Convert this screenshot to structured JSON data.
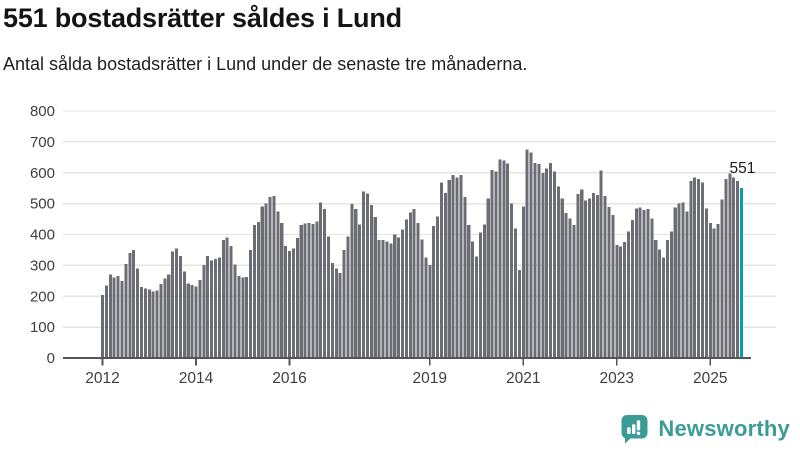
{
  "header": {
    "title": "551 bostadsrätter såldes i Lund",
    "subtitle": "Antal sålda bostadsrätter i Lund under de senaste tre månaderna."
  },
  "chart_data": {
    "type": "bar",
    "title": "551 bostadsrätter såldes i Lund",
    "subtitle": "Antal sålda bostadsrätter i Lund under de senaste tre månaderna.",
    "x_start": "2012-01",
    "x_end": "2025-09",
    "frequency": "monthly",
    "ylim": [
      0,
      800
    ],
    "y_ticks": [
      0,
      100,
      200,
      300,
      400,
      500,
      600,
      700,
      800
    ],
    "x_ticks": [
      {
        "year": 2012,
        "label": "2012"
      },
      {
        "year": 2014,
        "label": "2014"
      },
      {
        "year": 2016,
        "label": "2016"
      },
      {
        "year": 2019,
        "label": "2019"
      },
      {
        "year": 2021,
        "label": "2021"
      },
      {
        "year": 2023,
        "label": "2023"
      },
      {
        "year": 2025,
        "label": "2025"
      }
    ],
    "grid": true,
    "legend": "none",
    "values": [
      204,
      235,
      270,
      260,
      265,
      250,
      305,
      340,
      350,
      290,
      230,
      225,
      222,
      216,
      218,
      240,
      258,
      270,
      345,
      355,
      330,
      280,
      242,
      236,
      231,
      253,
      301,
      330,
      315,
      320,
      326,
      382,
      390,
      363,
      303,
      266,
      261,
      263,
      350,
      430,
      441,
      490,
      501,
      522,
      525,
      474,
      438,
      363,
      347,
      355,
      388,
      431,
      436,
      438,
      434,
      442,
      503,
      482,
      393,
      307,
      290,
      276,
      350,
      393,
      498,
      482,
      433,
      539,
      533,
      496,
      456,
      382,
      382,
      377,
      371,
      400,
      390,
      417,
      449,
      471,
      482,
      438,
      384,
      326,
      301,
      428,
      458,
      568,
      535,
      577,
      593,
      585,
      593,
      522,
      431,
      377,
      328,
      406,
      433,
      517,
      609,
      604,
      643,
      639,
      630,
      501,
      420,
      285,
      490,
      676,
      665,
      631,
      628,
      600,
      614,
      631,
      604,
      555,
      517,
      469,
      452,
      430,
      531,
      546,
      510,
      517,
      535,
      528,
      607,
      525,
      489,
      463,
      366,
      361,
      375,
      409,
      447,
      485,
      488,
      479,
      482,
      452,
      382,
      352,
      326,
      382,
      409,
      488,
      501,
      503,
      474,
      574,
      585,
      579,
      568,
      485,
      438,
      420,
      434,
      514,
      579,
      598,
      585,
      574,
      551
    ],
    "highlight_last_value": 551,
    "annotation_label": "551",
    "bar_color": "#6c6c75",
    "highlight_color": "#00a2a2",
    "axis_color": "#54545b",
    "axis_text_color": "#3e3e44",
    "annotation_color": "#1c1c1c",
    "grid_color": "#e4e4e4"
  },
  "footer": {
    "logo_text": "Newsworthy",
    "logo_color": "#3b9c95"
  }
}
